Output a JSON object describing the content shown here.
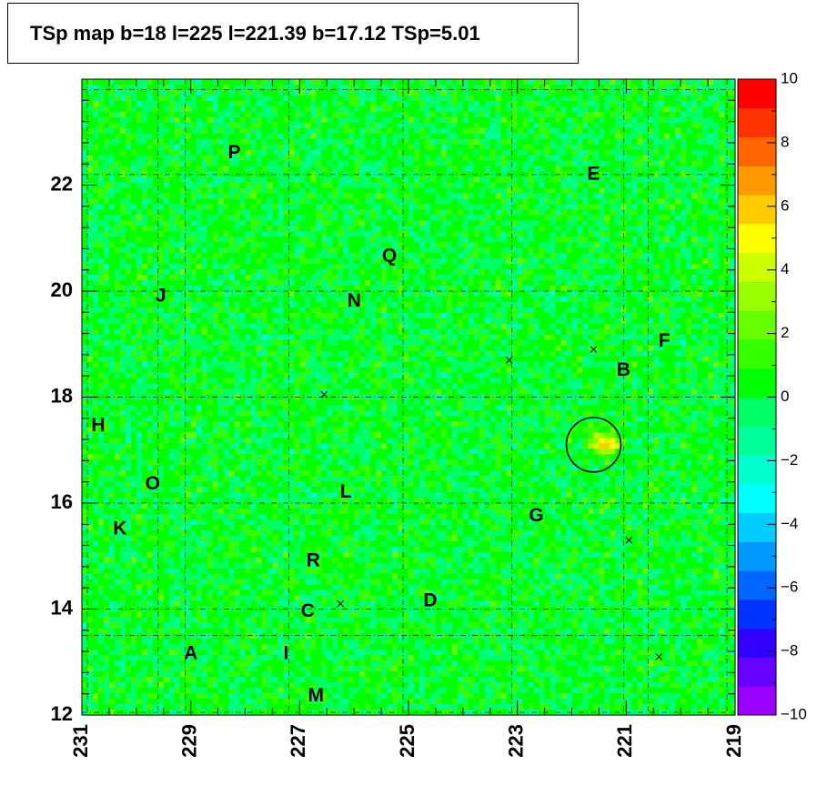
{
  "title": "TSp map b=18 l=225 l=221.39 b=17.12 TSp=5.01",
  "chart_data": {
    "type": "heatmap",
    "title": "TSp map b=18 l=225 l=221.39 b=17.12 TSp=5.01",
    "xlabel": "",
    "ylabel": "",
    "xlim": [
      231,
      219
    ],
    "ylim": [
      12,
      24
    ],
    "x_ticks": [
      "231",
      "229",
      "227",
      "225",
      "223",
      "221",
      "219"
    ],
    "y_ticks": [
      "12",
      "14",
      "16",
      "18",
      "20",
      "22"
    ],
    "colorbar": {
      "range": [
        -10,
        10
      ],
      "ticks": [
        "10",
        "8",
        "6",
        "4",
        "2",
        "0",
        "−2",
        "−4",
        "−6",
        "−8",
        "−10"
      ]
    },
    "background_value_typical": 0,
    "peak": {
      "l": 221.39,
      "b": 17.12,
      "value": 5.01
    },
    "field_labels": [
      {
        "label": "P",
        "l": 228.2,
        "b": 22.6
      },
      {
        "label": "E",
        "l": 221.6,
        "b": 22.2
      },
      {
        "label": "Q",
        "l": 225.35,
        "b": 20.65
      },
      {
        "label": "J",
        "l": 229.55,
        "b": 19.9
      },
      {
        "label": "N",
        "l": 226.0,
        "b": 19.8
      },
      {
        "label": "F",
        "l": 220.3,
        "b": 19.05
      },
      {
        "label": "B",
        "l": 221.05,
        "b": 18.5
      },
      {
        "label": "H",
        "l": 230.7,
        "b": 17.45
      },
      {
        "label": "O",
        "l": 229.7,
        "b": 16.35
      },
      {
        "label": "L",
        "l": 226.15,
        "b": 16.2
      },
      {
        "label": "G",
        "l": 222.65,
        "b": 15.75
      },
      {
        "label": "K",
        "l": 230.3,
        "b": 15.5
      },
      {
        "label": "R",
        "l": 226.75,
        "b": 14.9
      },
      {
        "label": "D",
        "l": 224.6,
        "b": 14.15
      },
      {
        "label": "C",
        "l": 226.85,
        "b": 13.95
      },
      {
        "label": "A",
        "l": 229.0,
        "b": 13.15
      },
      {
        "label": "I",
        "l": 227.25,
        "b": 13.15
      },
      {
        "label": "M",
        "l": 226.7,
        "b": 12.35
      }
    ],
    "source_markers": [
      {
        "l": 223.15,
        "b": 18.7
      },
      {
        "l": 221.6,
        "b": 18.9
      },
      {
        "l": 226.55,
        "b": 18.05
      },
      {
        "l": 220.95,
        "b": 15.3
      },
      {
        "l": 226.25,
        "b": 14.1
      },
      {
        "l": 220.4,
        "b": 13.1
      }
    ],
    "circle": {
      "l": 221.6,
      "b": 17.1,
      "radius_deg": 0.5
    }
  },
  "colors": {
    "background_green": "#00ff00",
    "peak_yellow": "#ccff00",
    "low_cyan": "#00ffcc",
    "frame": "#000000"
  }
}
